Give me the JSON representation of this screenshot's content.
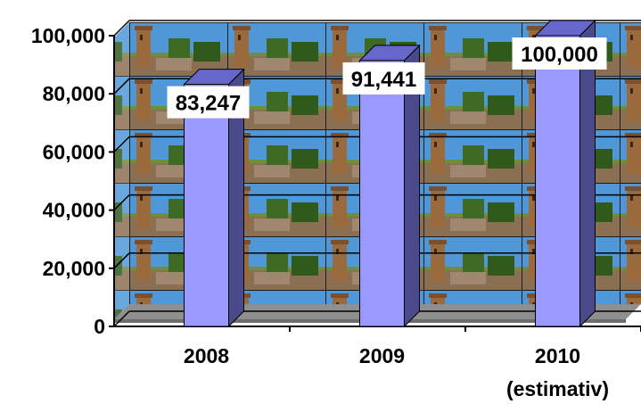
{
  "chart_data": {
    "type": "bar",
    "categories": [
      "2008",
      "2009",
      "2010"
    ],
    "category_sublabels": [
      "",
      "",
      "(estimativ)"
    ],
    "values": [
      83247,
      91441,
      100000
    ],
    "value_labels": [
      "83,247",
      "91,441",
      "100,000"
    ],
    "y_ticks": [
      "0",
      "20,000",
      "40,000",
      "60,000",
      "80,000",
      "100,000"
    ],
    "ylim": [
      0,
      100000
    ],
    "title": "",
    "xlabel": "",
    "ylabel": "",
    "legend": false,
    "grid": true,
    "style": "3d-column",
    "background": "tiled photo of a brick tower and ruins under blue sky",
    "bar_color": "#9999ff",
    "bar_side_color": "#4a4a8a",
    "bar_top_color": "#6666cc",
    "label_bg": "#ffffff"
  }
}
